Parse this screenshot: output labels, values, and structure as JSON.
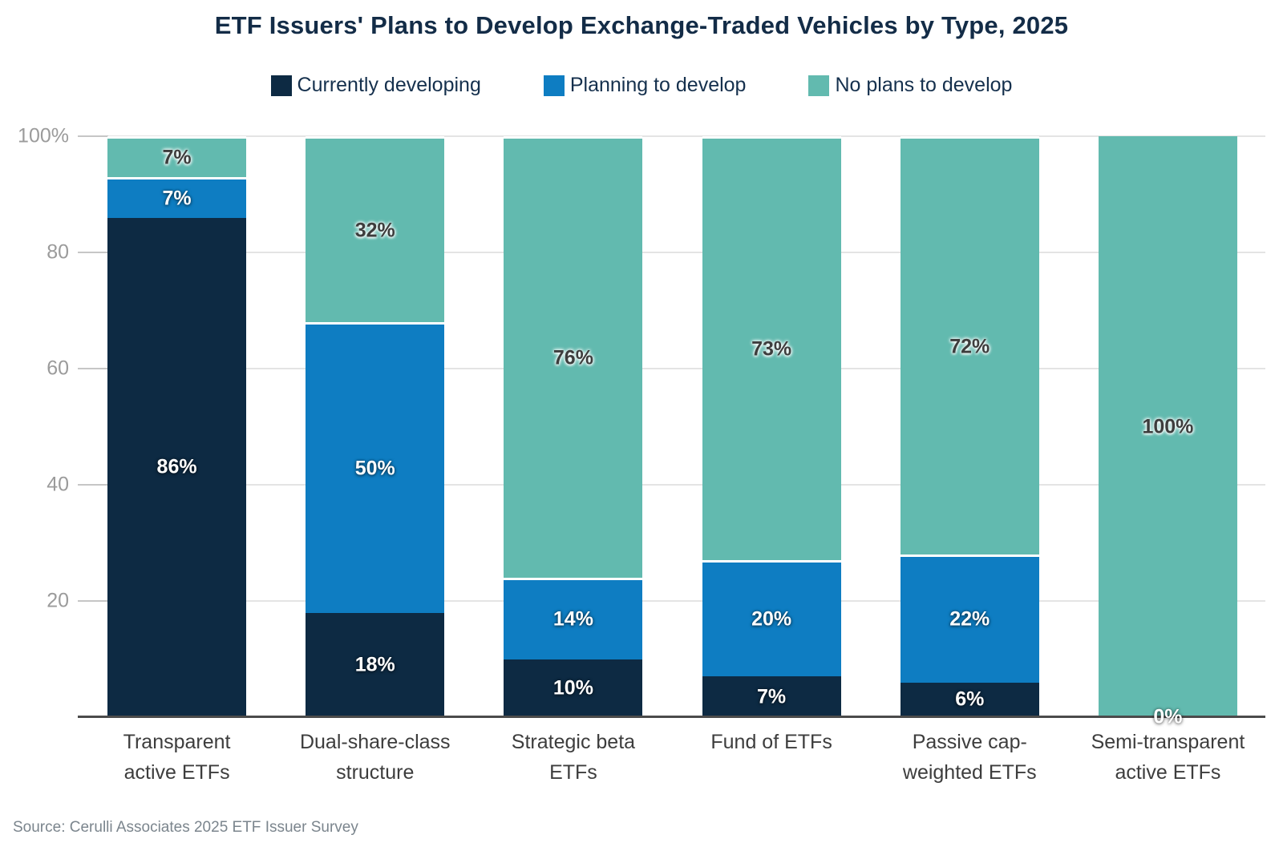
{
  "title": "ETF Issuers' Plans to Develop Exchange-Traded Vehicles by Type, 2025",
  "source": "Source: Cerulli Associates 2025 ETF Issuer Survey",
  "colors": {
    "currently_developing": "#0d2a43",
    "planning_to_develop": "#0e7dc2",
    "no_plans_to_develop": "#62baaf",
    "title_text": "#132c47",
    "legend_text": "#15304d",
    "category_text": "#3d3d3d",
    "y_tick_text": "#9b9b9b",
    "source_text": "#7b858d",
    "gridline": "#e4e4e4",
    "baseline": "#4b4b4b"
  },
  "legend": {
    "items": [
      {
        "label": "Currently developing",
        "color_key": "currently_developing"
      },
      {
        "label": "Planning to develop",
        "color_key": "planning_to_develop"
      },
      {
        "label": "No plans to develop",
        "color_key": "no_plans_to_develop"
      }
    ]
  },
  "y_axis": {
    "ticks": [
      {
        "label": "100%",
        "value": 100
      },
      {
        "label": "80",
        "value": 80
      },
      {
        "label": "60",
        "value": 60
      },
      {
        "label": "40",
        "value": 40
      },
      {
        "label": "20",
        "value": 20
      }
    ]
  },
  "chart_data": {
    "type": "bar",
    "stacked": true,
    "ylim": [
      0,
      100
    ],
    "unit": "%",
    "grid": true,
    "legend_position": "top",
    "title": "ETF Issuers' Plans to Develop Exchange-Traded Vehicles by Type, 2025",
    "xlabel": "",
    "ylabel": "",
    "categories": [
      "Transparent active ETFs",
      "Dual-share-class structure",
      "Strategic beta ETFs",
      "Fund of ETFs",
      "Passive cap-weighted ETFs",
      "Semi-transparent active ETFs"
    ],
    "category_label_lines": [
      [
        "Transparent",
        "active ETFs"
      ],
      [
        "Dual-share-class",
        "structure"
      ],
      [
        "Strategic beta",
        "ETFs"
      ],
      [
        "Fund of ETFs"
      ],
      [
        "Passive cap-",
        "weighted ETFs"
      ],
      [
        "Semi-transparent",
        "active ETFs"
      ]
    ],
    "series": [
      {
        "name": "Currently developing",
        "color_key": "currently_developing",
        "label_style": "light",
        "values": [
          86,
          18,
          10,
          7,
          6,
          0
        ]
      },
      {
        "name": "Planning to develop",
        "color_key": "planning_to_develop",
        "label_style": "light",
        "values": [
          7,
          50,
          14,
          20,
          22,
          0
        ]
      },
      {
        "name": "No plans to develop",
        "color_key": "no_plans_to_develop",
        "label_style": "dark",
        "values": [
          7,
          32,
          76,
          73,
          72,
          100
        ]
      }
    ],
    "zero_label": {
      "category_index": 5,
      "series_index": 0,
      "text": "0%"
    }
  }
}
